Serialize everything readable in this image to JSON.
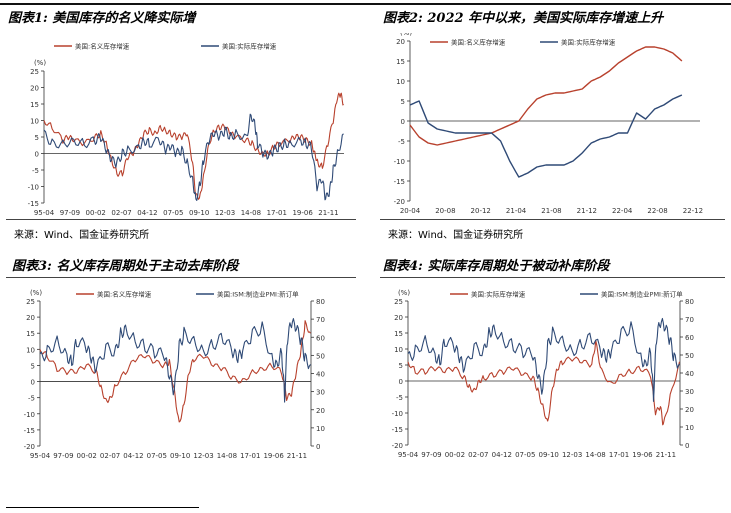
{
  "chart_data": [
    {
      "type": "line",
      "title": "图表1: 美国库存的名义降实际增",
      "unit_left": "(%)",
      "ylim": [
        -15,
        25
      ],
      "yticks": [
        -15,
        -10,
        -5,
        0,
        5,
        10,
        15,
        20,
        25
      ],
      "xticks": [
        "95-04",
        "97-09",
        "00-02",
        "02-07",
        "04-12",
        "07-05",
        "09-10",
        "12-03",
        "14-08",
        "17-01",
        "19-06",
        "21-11"
      ],
      "x_range": [
        1995.25,
        2023.0
      ],
      "legend_placement": "top",
      "series": [
        {
          "name": "美国:名义库存增速",
          "color": "#b8412d",
          "x": [
            1995.25,
            1996,
            1997,
            1997.5,
            1998,
            1999,
            2000,
            2000.5,
            2001,
            2001.5,
            2002,
            2002.5,
            2003,
            2003.5,
            2004,
            2004.5,
            2005,
            2005.5,
            2006,
            2006.5,
            2007,
            2007.5,
            2008,
            2008.5,
            2009,
            2009.3,
            2009.7,
            2010,
            2010.5,
            2011,
            2011.5,
            2012,
            2012.5,
            2013,
            2014,
            2014.5,
            2015,
            2015.5,
            2016,
            2016.5,
            2017,
            2018,
            2018.5,
            2019,
            2019.5,
            2020,
            2020.3,
            2020.6,
            2021,
            2021.5,
            2022,
            2022.4,
            2022.7,
            2022.95
          ],
          "y": [
            10,
            8,
            4,
            5,
            4,
            3,
            5,
            6,
            3,
            -2,
            -6,
            -6,
            -1,
            0,
            3,
            6,
            7,
            6,
            8,
            7,
            6,
            5,
            5,
            6,
            -3,
            -13,
            -13,
            -7,
            3,
            7,
            8,
            8,
            6,
            5,
            4,
            3,
            1,
            0,
            0,
            2,
            3,
            4,
            5,
            5,
            4,
            3,
            0,
            -3,
            -4,
            3,
            10,
            17,
            18,
            15
          ]
        },
        {
          "name": "美国:实际库存增速",
          "color": "#2f4a76",
          "x": [
            1995.25,
            1996,
            1997,
            1998,
            1999,
            2000,
            2000.5,
            2001,
            2001.5,
            2002,
            2002.5,
            2003,
            2004,
            2004.5,
            2005,
            2006,
            2006.5,
            2007,
            2007.5,
            2008,
            2008.5,
            2009,
            2009.3,
            2009.7,
            2010,
            2010.5,
            2011,
            2011.5,
            2012,
            2012.5,
            2013,
            2014,
            2014.4,
            2014.8,
            2015,
            2015.5,
            2016,
            2016.5,
            2017,
            2017.5,
            2018,
            2019,
            2019.5,
            2020,
            2020.5,
            2021,
            2021.3,
            2021.7,
            2022,
            2022.4,
            2022.95
          ],
          "y": [
            6,
            3,
            3,
            4,
            3,
            4,
            5,
            1,
            -2,
            -3,
            0,
            1,
            2,
            4,
            3,
            4,
            1,
            2,
            0,
            1,
            -3,
            -8,
            -14,
            -9,
            -2,
            4,
            6,
            5,
            7,
            5,
            6,
            5,
            12,
            8,
            3,
            0,
            -1,
            1,
            2,
            3,
            3,
            4,
            3,
            2,
            -10,
            -8,
            -14,
            -11,
            -5,
            0,
            6
          ]
        }
      ]
    },
    {
      "type": "line",
      "title": "图表2: 2022 年中以来，美国实际库存增速上升",
      "unit_left": "(%)",
      "ylim": [
        -20,
        20
      ],
      "yticks": [
        -20,
        -15,
        -10,
        -5,
        0,
        5,
        10,
        15,
        20
      ],
      "xticks": [
        "20-04",
        "20-08",
        "20-12",
        "21-04",
        "21-08",
        "21-12",
        "22-04",
        "22-08",
        "22-12"
      ],
      "x_range": [
        0,
        32
      ],
      "legend_placement": "top",
      "series": [
        {
          "name": "美国:名义库存增速",
          "color": "#b8412d",
          "x": [
            0,
            1,
            2,
            3,
            4,
            5,
            6,
            7,
            8,
            9,
            10,
            11,
            12,
            13,
            14,
            15,
            16,
            17,
            18,
            19,
            20,
            21,
            22,
            23,
            24,
            25,
            26,
            27,
            28,
            29,
            30
          ],
          "y": [
            -1,
            -4,
            -5.5,
            -6,
            -5.5,
            -5,
            -4.5,
            -4,
            -3.5,
            -3,
            -2,
            -1,
            0,
            3,
            5.5,
            6.5,
            7,
            7,
            7.5,
            8,
            10,
            11,
            12.5,
            14.5,
            16,
            17.5,
            18.5,
            18.5,
            18,
            17,
            15
          ]
        },
        {
          "name": "美国:实际库存增速",
          "color": "#2f4a76",
          "x": [
            0,
            1,
            2,
            3,
            4,
            5,
            6,
            7,
            8,
            9,
            10,
            11,
            12,
            13,
            14,
            15,
            16,
            17,
            18,
            19,
            20,
            21,
            22,
            23,
            24,
            25,
            26,
            27,
            28,
            29,
            30
          ],
          "y": [
            4,
            5,
            -0.5,
            -2,
            -2.5,
            -3,
            -3,
            -3,
            -3,
            -3,
            -5,
            -10,
            -14,
            -13,
            -11.5,
            -11,
            -11,
            -11,
            -10,
            -8,
            -5.5,
            -4.5,
            -4,
            -3,
            -3,
            2,
            0.5,
            3,
            4,
            5.5,
            6.5
          ]
        }
      ]
    },
    {
      "type": "line",
      "title": "图表3: 名义库存周期处于主动去库阶段",
      "unit_left": "(%)",
      "ylim": [
        -20,
        25
      ],
      "yticks": [
        -20,
        -15,
        -10,
        -5,
        0,
        5,
        10,
        15,
        20,
        25
      ],
      "ylim_right": [
        0,
        80
      ],
      "yticks_right": [
        0,
        10,
        20,
        30,
        40,
        50,
        60,
        70,
        80
      ],
      "xticks": [
        "95-04",
        "97-09",
        "00-02",
        "02-07",
        "04-12",
        "07-05",
        "09-10",
        "12-03",
        "14-08",
        "17-01",
        "19-06",
        "21-11"
      ],
      "x_range": [
        1995.25,
        2023.0
      ],
      "legend_placement": "top",
      "series": [
        {
          "name": "美国:名义库存增速",
          "axis": "left",
          "color": "#b8412d",
          "x": [
            1995.25,
            1996,
            1997,
            1998,
            1999,
            2000,
            2001,
            2001.5,
            2002,
            2002.5,
            2003,
            2004,
            2005,
            2006,
            2007,
            2008,
            2008.5,
            2009,
            2009.5,
            2010,
            2010.5,
            2011,
            2012,
            2013,
            2014,
            2015,
            2016,
            2017,
            2018,
            2019,
            2020,
            2020.5,
            2021,
            2021.5,
            2022,
            2022.4,
            2022.95
          ],
          "y": [
            10,
            8,
            4,
            3,
            3,
            5,
            3,
            -2,
            -6,
            -5,
            -1,
            3,
            7,
            8,
            6,
            5,
            6,
            -3,
            -13,
            -7,
            3,
            7,
            8,
            5,
            4,
            1,
            0,
            3,
            4,
            5,
            3,
            -5,
            -4,
            3,
            10,
            18,
            15
          ]
        },
        {
          "name": "美国:ISM:制造业PMI:新订单",
          "axis": "right",
          "color": "#2f4a76",
          "x": [
            1995.25,
            1996,
            1997,
            1998,
            1998.5,
            1999,
            2000,
            2000.5,
            2001,
            2002,
            2003,
            2003.5,
            2004,
            2005,
            2006,
            2007,
            2008,
            2008.5,
            2009,
            2009.5,
            2010,
            2011,
            2012,
            2013,
            2014,
            2015,
            2015.5,
            2016,
            2017,
            2018,
            2019,
            2019.5,
            2020,
            2020.3,
            2020.6,
            2021,
            2021.5,
            2022,
            2022.4,
            2022.95
          ],
          "y": [
            48,
            52,
            58,
            50,
            46,
            58,
            55,
            48,
            42,
            54,
            52,
            62,
            65,
            58,
            55,
            52,
            50,
            38,
            30,
            55,
            62,
            58,
            52,
            56,
            60,
            52,
            48,
            52,
            62,
            65,
            48,
            45,
            52,
            27,
            60,
            68,
            65,
            58,
            48,
            45
          ]
        }
      ]
    },
    {
      "type": "line",
      "title": "图表4: 实际库存周期处于被动补库阶段",
      "unit_left": "(%)",
      "ylim": [
        -20,
        25
      ],
      "yticks": [
        -20,
        -15,
        -10,
        -5,
        0,
        5,
        10,
        15,
        20,
        25
      ],
      "ylim_right": [
        0,
        80
      ],
      "yticks_right": [
        0,
        10,
        20,
        30,
        40,
        50,
        60,
        70,
        80
      ],
      "xticks": [
        "95-04",
        "97-09",
        "00-02",
        "02-07",
        "04-12",
        "07-05",
        "09-10",
        "12-03",
        "14-08",
        "17-01",
        "19-06",
        "21-11"
      ],
      "x_range": [
        1995.25,
        2023.0
      ],
      "legend_placement": "top",
      "series": [
        {
          "name": "美国:实际库存增速",
          "axis": "left",
          "color": "#b8412d",
          "x": [
            1995.25,
            1996,
            1997,
            1998,
            1999,
            2000,
            2001,
            2001.5,
            2002,
            2002.5,
            2003,
            2004,
            2005,
            2006,
            2007,
            2008,
            2008.5,
            2009,
            2009.5,
            2010,
            2010.5,
            2011,
            2012,
            2013,
            2014,
            2014.4,
            2015,
            2016,
            2017,
            2018,
            2019,
            2020,
            2020.5,
            2021,
            2021.3,
            2022,
            2022.95
          ],
          "y": [
            6,
            3,
            3,
            4,
            3,
            4,
            1,
            -2,
            -3,
            0,
            1,
            2,
            3,
            4,
            2,
            1,
            -3,
            -8,
            -13,
            -2,
            4,
            6,
            7,
            6,
            5,
            12,
            3,
            -1,
            2,
            3,
            4,
            2,
            -10,
            -8,
            -14,
            -5,
            6
          ]
        },
        {
          "name": "美国:ISM:制造业PMI:新订单",
          "axis": "right",
          "color": "#2f4a76",
          "x": [
            1995.25,
            1996,
            1997,
            1998,
            1998.5,
            1999,
            2000,
            2000.5,
            2001,
            2002,
            2003,
            2003.5,
            2004,
            2005,
            2006,
            2007,
            2008,
            2008.5,
            2009,
            2009.5,
            2010,
            2011,
            2012,
            2013,
            2014,
            2015,
            2015.5,
            2016,
            2017,
            2018,
            2019,
            2019.5,
            2020,
            2020.3,
            2020.6,
            2021,
            2021.5,
            2022,
            2022.4,
            2022.95
          ],
          "y": [
            48,
            52,
            58,
            50,
            46,
            58,
            55,
            48,
            42,
            54,
            52,
            62,
            65,
            58,
            55,
            52,
            50,
            38,
            30,
            55,
            62,
            58,
            52,
            56,
            60,
            52,
            48,
            52,
            62,
            65,
            48,
            45,
            52,
            27,
            60,
            68,
            65,
            58,
            48,
            45
          ]
        }
      ]
    }
  ],
  "sources": [
    "来源：Wind、国金证券研究所",
    "来源：Wind、国金证券研究所"
  ]
}
